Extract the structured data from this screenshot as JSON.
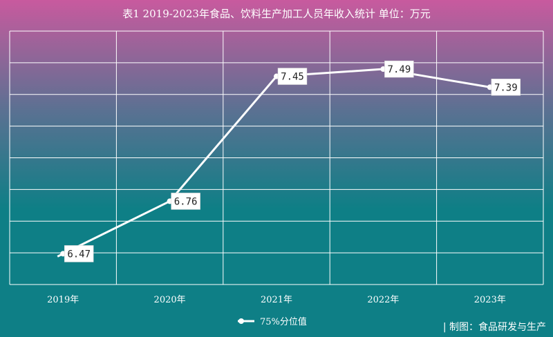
{
  "chart_data": {
    "type": "line",
    "title": "表1 2019-2023年食品、饮料生产加工人员年收入统计 单位：万元",
    "categories": [
      "2019年",
      "2020年",
      "2021年",
      "2022年",
      "2023年"
    ],
    "series": [
      {
        "name": "75%分位值",
        "values": [
          6.47,
          6.76,
          7.45,
          7.49,
          7.39
        ]
      }
    ],
    "data_labels": [
      "6.47",
      "6.76",
      "7.45",
      "7.49",
      "7.39"
    ],
    "ylim": [
      6.3,
      7.7
    ],
    "grid": true,
    "legend_position": "bottom-center",
    "xlabel": "",
    "ylabel": ""
  },
  "credit": "| 制图：食品研发与生产",
  "colors": {
    "background_top": "#c85a9e",
    "background_mid": "#5a7192",
    "background_bottom": "#0e7f86",
    "line": "#ffffff",
    "grid": "#ffffff",
    "label_box": "#ffffff",
    "label_text": "#222222"
  }
}
